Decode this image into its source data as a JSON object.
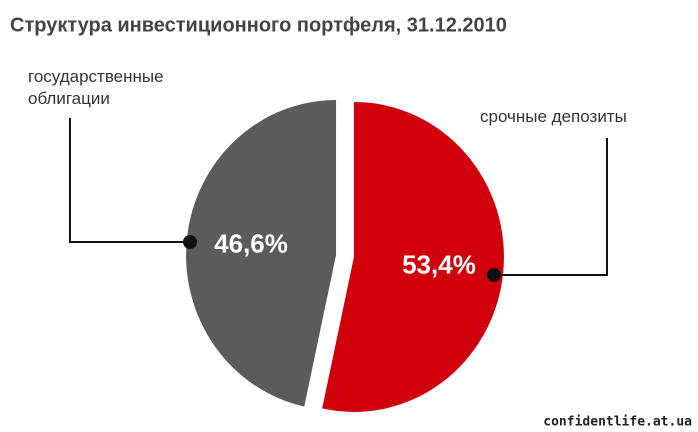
{
  "chart_data": {
    "type": "pie",
    "title": "Структура инвестиционного портфеля, 31.12.2010",
    "categories": [
      "срочные депозиты",
      "государственные облигации"
    ],
    "values": [
      53.4,
      46.6
    ],
    "value_labels": [
      "53,4%",
      "46,6%"
    ],
    "colors": [
      "#d0000c",
      "#5b5b5b"
    ]
  },
  "watermark": "confidentlife.at.ua"
}
